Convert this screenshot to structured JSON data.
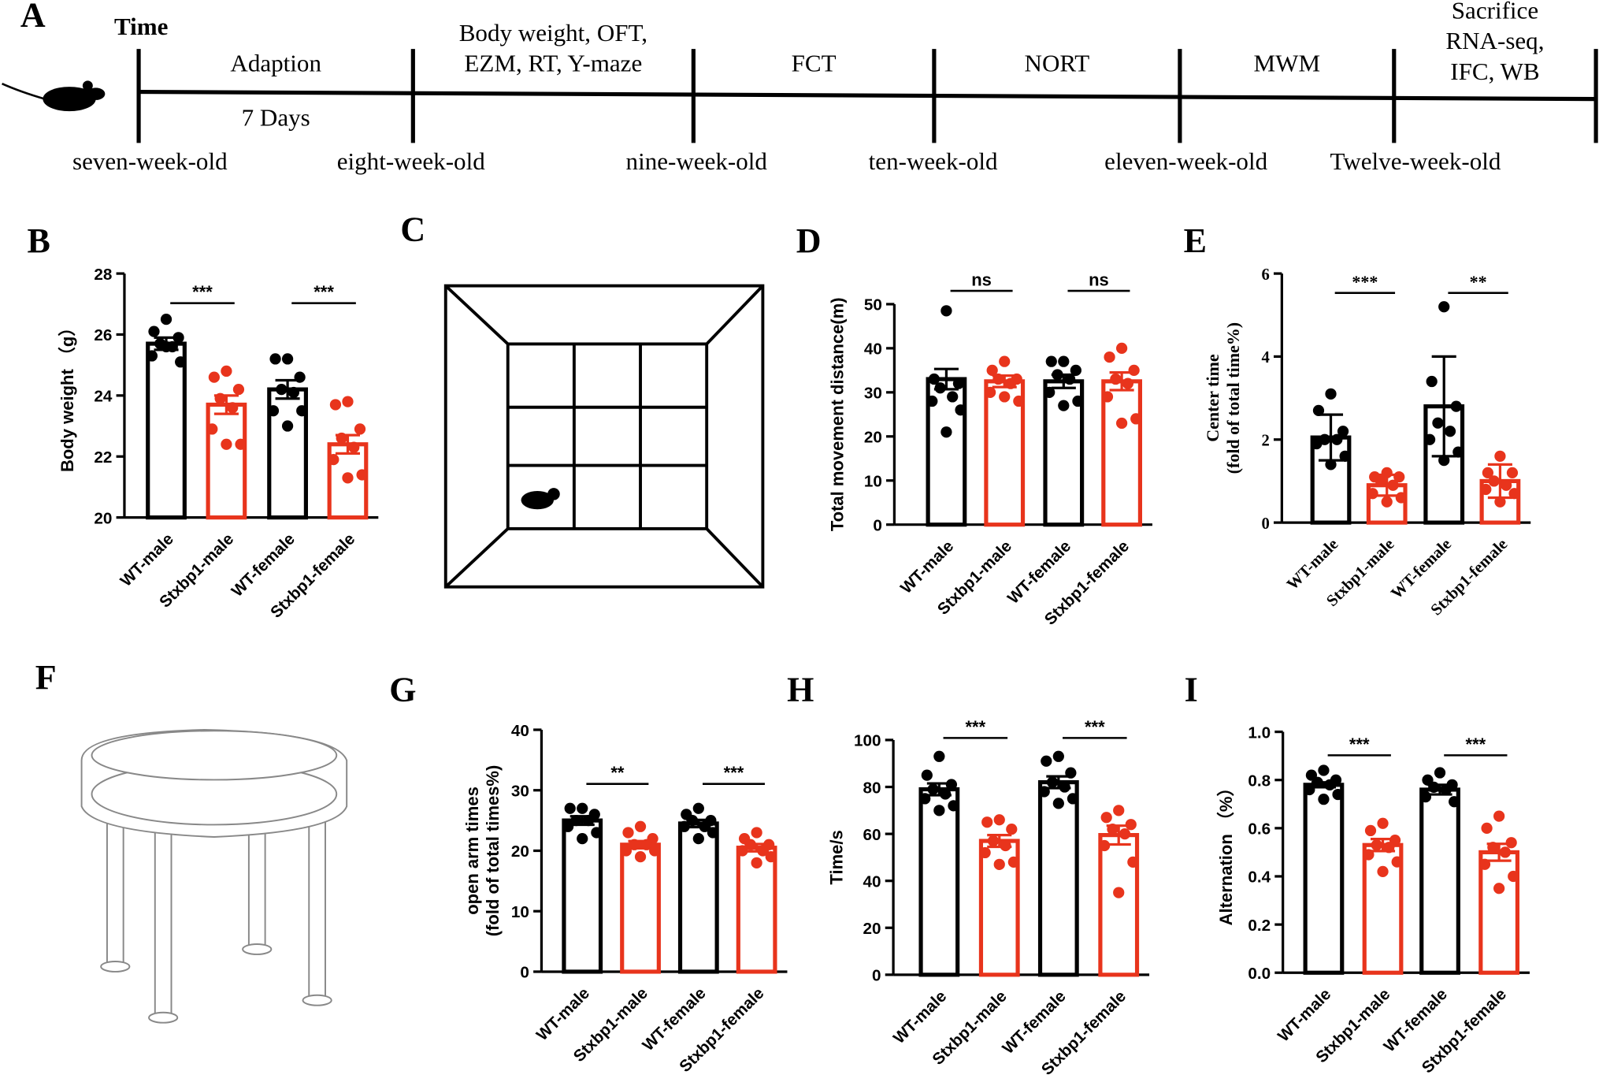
{
  "timeline": {
    "panel": "A",
    "time_label": "Time",
    "segments": [
      {
        "lines": [
          "Adaption"
        ],
        "below": "7 Days"
      },
      {
        "lines": [
          "Body weight,  OFT,",
          "EZM,  RT,  Y-maze"
        ]
      },
      {
        "lines": [
          "FCT"
        ]
      },
      {
        "lines": [
          "NORT"
        ]
      },
      {
        "lines": [
          "MWM"
        ]
      },
      {
        "lines": [
          "Sacrifice",
          "RNA-seq,",
          "IFC, WB"
        ]
      }
    ],
    "ages": [
      "seven-week-old",
      "eight-week-old",
      "nine-week-old",
      "ten-week-old",
      "eleven-week-old",
      "Twelve-week-old"
    ]
  },
  "drawings": [
    {
      "panel": "C"
    },
    {
      "panel": "F"
    }
  ],
  "chart_data": [
    {
      "type": "bar",
      "panel": "B",
      "ylabel": "Body weight （g）",
      "categories": [
        "WT-male",
        "Stxbp1-male",
        "WT-female",
        "Stxbp1-female"
      ],
      "values": [
        25.7,
        23.7,
        24.2,
        22.4
      ],
      "errors": [
        0.2,
        0.3,
        0.3,
        0.3
      ],
      "points": [
        [
          26.5,
          26.1,
          25.9,
          25.7,
          25.6,
          25.3,
          25.1,
          25.6
        ],
        [
          24.8,
          24.6,
          24.2,
          23.9,
          23.6,
          22.9,
          22.4,
          22.4
        ],
        [
          25.2,
          25.2,
          24.6,
          24.2,
          24.1,
          23.5,
          23.5,
          23.0
        ],
        [
          23.8,
          23.7,
          22.9,
          22.6,
          22.3,
          21.9,
          21.4,
          21.3
        ]
      ],
      "colors": [
        "#000000",
        "#e8341c",
        "#000000",
        "#e8341c"
      ],
      "ylim": [
        20,
        28
      ],
      "yticks": [
        20,
        22,
        24,
        26,
        28
      ],
      "significance": [
        "***",
        "***"
      ]
    },
    {
      "type": "bar",
      "panel": "D",
      "ylabel": "Total movement distance(m)",
      "categories": [
        "WT-male",
        "Stxbp1-male",
        "WT-female",
        "Stxbp1-female"
      ],
      "values": [
        33,
        32.5,
        32.5,
        32.5
      ],
      "errors": [
        2.3,
        1.3,
        1.5,
        2
      ],
      "points": [
        [
          48.5,
          33,
          32,
          31,
          29,
          28,
          26,
          21
        ],
        [
          37,
          35,
          33,
          33,
          32,
          30,
          28,
          29
        ],
        [
          37,
          37,
          35,
          34,
          33,
          30,
          28,
          27
        ],
        [
          40,
          38,
          35,
          33,
          32,
          29,
          24,
          23
        ]
      ],
      "colors": [
        "#000000",
        "#e8341c",
        "#000000",
        "#e8341c"
      ],
      "ylim": [
        0,
        50
      ],
      "yticks": [
        0,
        10,
        20,
        30,
        40,
        50
      ],
      "significance": [
        "ns",
        "ns"
      ]
    },
    {
      "type": "bar",
      "panel": "E",
      "ylabel": [
        "Center  time",
        "(fold of total time%)"
      ],
      "categories": [
        "WT-male",
        "Stxbp1-male",
        "WT-female",
        "Stxbp1-female"
      ],
      "values": [
        2.05,
        0.9,
        2.8,
        1.0
      ],
      "errors": [
        0.55,
        0.25,
        1.2,
        0.4
      ],
      "points": [
        [
          3.1,
          2.7,
          2.2,
          2.0,
          2.0,
          1.9,
          1.6,
          1.4
        ],
        [
          1.2,
          1.1,
          1.1,
          1.0,
          0.9,
          0.7,
          0.6,
          0.5
        ],
        [
          5.2,
          3.4,
          2.8,
          2.4,
          2.2,
          2.0,
          1.7,
          1.5
        ],
        [
          1.6,
          1.2,
          1.2,
          1.0,
          0.9,
          0.8,
          0.7,
          0.5
        ]
      ],
      "colors": [
        "#000000",
        "#e8341c",
        "#000000",
        "#e8341c"
      ],
      "ylim": [
        0,
        6
      ],
      "yticks": [
        0,
        2,
        4,
        6
      ],
      "significance": [
        "***",
        "**"
      ]
    },
    {
      "type": "bar",
      "panel": "G",
      "ylabel": [
        "open arm times",
        "(fold of total times%)"
      ],
      "categories": [
        "WT-male",
        "Stxbp1-male",
        "WT-female",
        "Stxbp1-female"
      ],
      "values": [
        25,
        21,
        24.5,
        20.5
      ],
      "errors": [
        0.7,
        0.6,
        0.6,
        0.6
      ],
      "points": [
        [
          27,
          27,
          26,
          25,
          25,
          24,
          23,
          22
        ],
        [
          24,
          23,
          22,
          21,
          21,
          20,
          20,
          19
        ],
        [
          27,
          26,
          25,
          25,
          24,
          24,
          23,
          22
        ],
        [
          23,
          22,
          21,
          21,
          20,
          20,
          19,
          18
        ]
      ],
      "colors": [
        "#000000",
        "#e8341c",
        "#000000",
        "#e8341c"
      ],
      "ylim": [
        0,
        40
      ],
      "yticks": [
        0,
        10,
        20,
        30,
        40
      ],
      "significance": [
        "**",
        "***"
      ]
    },
    {
      "type": "bar",
      "panel": "H",
      "ylabel": "Time/s",
      "categories": [
        "WT-male",
        "Stxbp1-male",
        "WT-female",
        "Stxbp1-female"
      ],
      "values": [
        79,
        57,
        82,
        59.5
      ],
      "errors": [
        2.5,
        2.5,
        2.5,
        4
      ],
      "points": [
        [
          93,
          85,
          81,
          79,
          77,
          75,
          72,
          70
        ],
        [
          66,
          65,
          62,
          57,
          55,
          52,
          48,
          47
        ],
        [
          93,
          91,
          86,
          82,
          80,
          78,
          75,
          73
        ],
        [
          70,
          67,
          64,
          62,
          60,
          55,
          48,
          35
        ]
      ],
      "colors": [
        "#000000",
        "#e8341c",
        "#000000",
        "#e8341c"
      ],
      "ylim": [
        0,
        100
      ],
      "yticks": [
        0,
        20,
        40,
        60,
        80,
        100
      ],
      "significance": [
        "***",
        "***"
      ]
    },
    {
      "type": "bar",
      "panel": "I",
      "ylabel": "Alternation （%）",
      "categories": [
        "WT-male",
        "Stxbp1-male",
        "WT-female",
        "Stxbp1-female"
      ],
      "values": [
        0.78,
        0.53,
        0.76,
        0.5
      ],
      "errors": [
        0.01,
        0.025,
        0.02,
        0.035
      ],
      "points": [
        [
          0.84,
          0.82,
          0.8,
          0.79,
          0.78,
          0.76,
          0.74,
          0.72
        ],
        [
          0.62,
          0.59,
          0.55,
          0.53,
          0.52,
          0.49,
          0.46,
          0.42
        ],
        [
          0.83,
          0.8,
          0.78,
          0.77,
          0.76,
          0.73,
          0.71
        ],
        [
          0.65,
          0.6,
          0.54,
          0.52,
          0.5,
          0.45,
          0.4,
          0.35
        ]
      ],
      "colors": [
        "#000000",
        "#e8341c",
        "#000000",
        "#e8341c"
      ],
      "ylim": [
        0,
        1
      ],
      "yticks": [
        {
          "value": 0,
          "label": "0.0"
        },
        0.2,
        0.4,
        0.6,
        0.8,
        {
          "value": 1,
          "label": "1.0"
        }
      ],
      "significance": [
        "***",
        "***"
      ]
    }
  ]
}
